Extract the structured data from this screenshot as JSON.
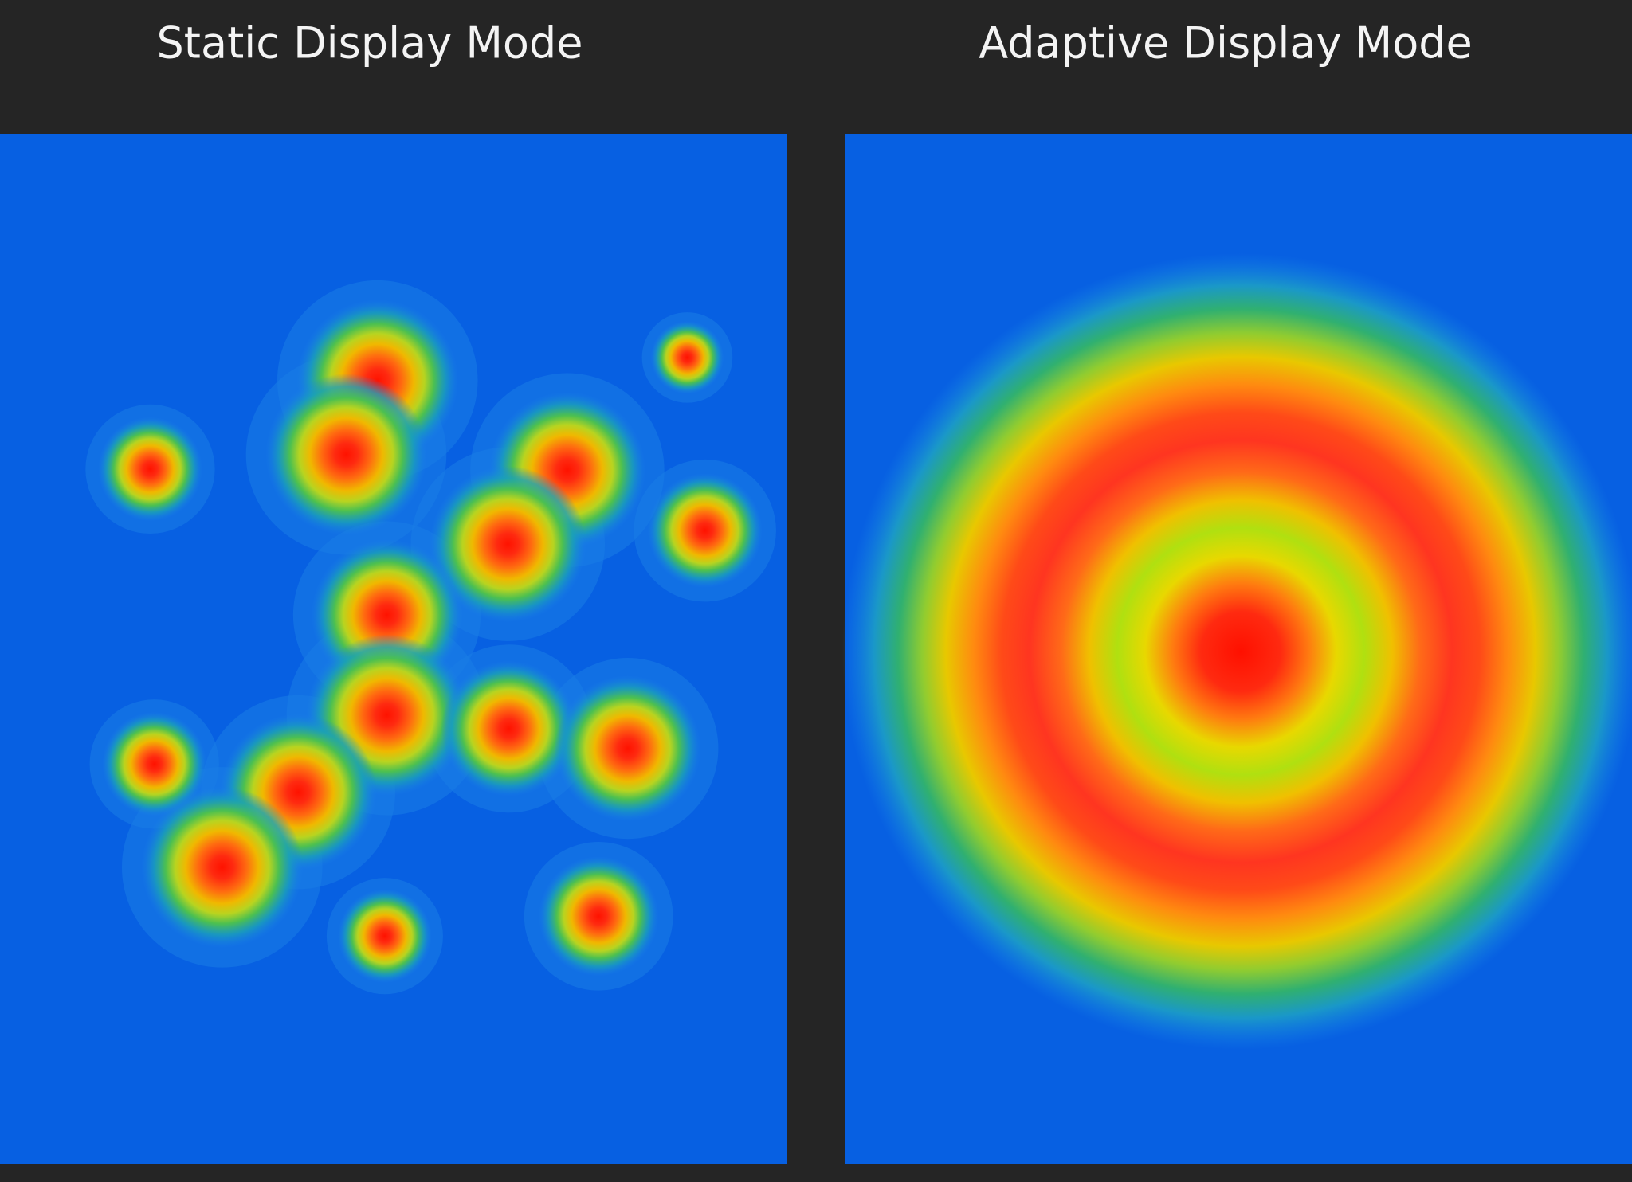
{
  "panels": [
    {
      "title": "Static Display Mode"
    },
    {
      "title": "Adaptive Display Mode"
    }
  ]
}
